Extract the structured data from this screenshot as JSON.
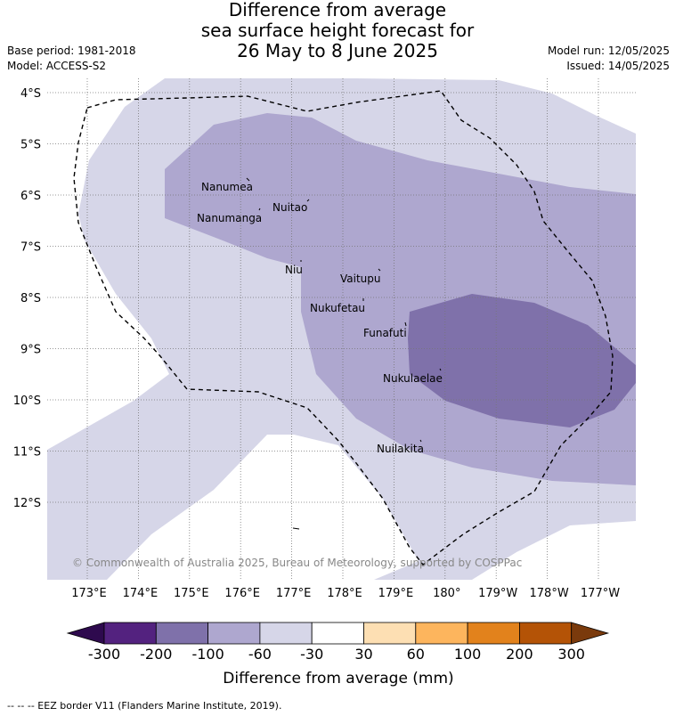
{
  "title": {
    "line1": "Difference from average",
    "line2": "sea surface height forecast for",
    "line3": "26 May to 8 June 2025"
  },
  "meta_left": {
    "base_period": "Base period: 1981-2018",
    "model": "Model: ACCESS-S2"
  },
  "meta_right": {
    "model_run": "Model run: 12/05/2025",
    "issued": "Issued: 14/05/2025"
  },
  "map": {
    "lat_labels": [
      "4°S",
      "5°S",
      "6°S",
      "7°S",
      "8°S",
      "9°S",
      "10°S",
      "11°S",
      "12°S"
    ],
    "lon_labels": [
      "173°E",
      "174°E",
      "175°E",
      "176°E",
      "177°E",
      "178°E",
      "179°E",
      "180°",
      "179°W",
      "178°W",
      "177°W"
    ],
    "places": [
      "Nanumea",
      "Nuitao",
      "Nanumanga",
      "Niu",
      "Vaitupu",
      "Nukufetau",
      "Funafuti",
      "Nukulaelae",
      "Nuilakita"
    ],
    "copyright": "© Commonwealth of Australia 2025, Bureau of Meteorology, supported by COSPPac",
    "contour_colors": {
      "-60 to -30": "#d6d6e8",
      "-100 to -60": "#aea7cf",
      "-200 to -100": "#7f71aa"
    }
  },
  "colorbar": {
    "ticks": [
      "-300",
      "-200",
      "-100",
      "-60",
      "-30",
      "30",
      "60",
      "100",
      "200",
      "300"
    ],
    "colors": [
      "#2e0a4e",
      "#53227f",
      "#7f71aa",
      "#aea7cf",
      "#d6d6e8",
      "#ffffff",
      "#fddfb3",
      "#fdb55d",
      "#e2821c",
      "#b45306",
      "#7a3a0c"
    ],
    "title": "Difference from average (mm)"
  },
  "footnote": "-- -- -- EEZ border V11 (Flanders Marine Institute, 2019)."
}
